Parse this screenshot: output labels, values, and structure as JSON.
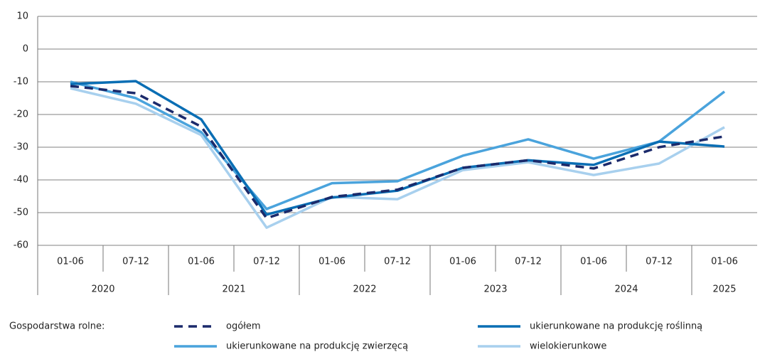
{
  "chart_data": {
    "type": "line",
    "groups": [
      {
        "name": "2020",
        "categories": [
          "01-06",
          "07-12"
        ]
      },
      {
        "name": "2021",
        "categories": [
          "01-06",
          "07-12"
        ]
      },
      {
        "name": "2022",
        "categories": [
          "01-06",
          "07-12"
        ]
      },
      {
        "name": "2023",
        "categories": [
          "01-06",
          "07-12"
        ]
      },
      {
        "name": "2024",
        "categories": [
          "01-06",
          "07-12"
        ]
      },
      {
        "name": "2025",
        "categories": [
          "01-06"
        ]
      }
    ],
    "ylim": [
      -60,
      10
    ],
    "yticks": [
      10,
      0,
      -10,
      -20,
      -30,
      -40,
      -50,
      -60
    ],
    "grid": true,
    "legend_title": "Gospodarstwa rolne:",
    "series": [
      {
        "name": "ogółem",
        "color": "#1b2a6b",
        "style": "dashed",
        "values": [
          -11.3,
          -13.5,
          -23.7,
          -51.7,
          -45.2,
          -43,
          -36.3,
          -34,
          -36.5,
          -30,
          -26.7
        ]
      },
      {
        "name": "ukierunkowane na produkcję roślinną",
        "color": "#0a6eb4",
        "style": "solid",
        "values": [
          -10.7,
          -9.8,
          -21.5,
          -50.6,
          -45.4,
          -43.3,
          -36.3,
          -34,
          -35.4,
          -28.3,
          -29.8
        ]
      },
      {
        "name": "ukierunkowane na produkcję zwierzęcą",
        "color": "#4aa3dc",
        "style": "solid",
        "values": [
          -10,
          -15,
          -25.4,
          -48.9,
          -41,
          -40.4,
          -32.6,
          -27.6,
          -33.5,
          -28.3,
          -13
        ]
      },
      {
        "name": "wielokierunkowe",
        "color": "#a8d0ee",
        "style": "solid",
        "values": [
          -12,
          -16.7,
          -26.3,
          -54.6,
          -45.2,
          -45.9,
          -37,
          -34.6,
          -38.5,
          -35,
          -23.9
        ]
      }
    ]
  }
}
